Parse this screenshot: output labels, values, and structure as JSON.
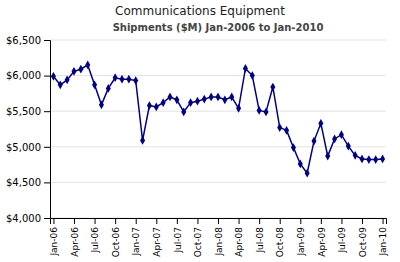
{
  "chart_data": {
    "type": "line",
    "title": "Communications Equipment",
    "subtitle": "Shipments ($M) Jan-2006 to Jan-2010",
    "color": "#00008B",
    "marker": "diamond",
    "grid": true,
    "categories": [
      "Jan-06",
      null,
      null,
      "Apr-06",
      null,
      null,
      "Jul-06",
      null,
      null,
      "Oct-06",
      null,
      null,
      "Jan-07",
      null,
      null,
      "Apr-07",
      null,
      null,
      "Jul-07",
      null,
      null,
      "Oct-07",
      null,
      null,
      "Jan-08",
      null,
      null,
      "Apr-08",
      null,
      null,
      "Jul-08",
      null,
      null,
      "Oct-08",
      null,
      null,
      "Jan-09",
      null,
      null,
      "Apr-09",
      null,
      null,
      "Jul-09",
      null,
      null,
      "Oct-09",
      null,
      null,
      "Jan-10"
    ],
    "values": [
      5990,
      5870,
      5940,
      6060,
      6090,
      6150,
      5870,
      5590,
      5820,
      5970,
      5950,
      5950,
      5930,
      5090,
      5580,
      5560,
      5620,
      5700,
      5660,
      5490,
      5620,
      5640,
      5670,
      5700,
      5700,
      5660,
      5700,
      5540,
      6100,
      6000,
      5510,
      5490,
      5840,
      5270,
      5230,
      4990,
      4760,
      4630,
      5080,
      5330,
      4870,
      5110,
      5170,
      5010,
      4880,
      4830,
      4820,
      4820,
      4830
    ],
    "ylim": [
      4000,
      6500
    ],
    "yticks": [
      {
        "value": 4000,
        "label": "$4,000"
      },
      {
        "value": 4500,
        "label": "$4,500"
      },
      {
        "value": 5000,
        "label": "$5,000"
      },
      {
        "value": 5500,
        "label": "$5,500"
      },
      {
        "value": 6000,
        "label": "$6,000"
      },
      {
        "value": 6500,
        "label": "$6,500"
      }
    ]
  }
}
